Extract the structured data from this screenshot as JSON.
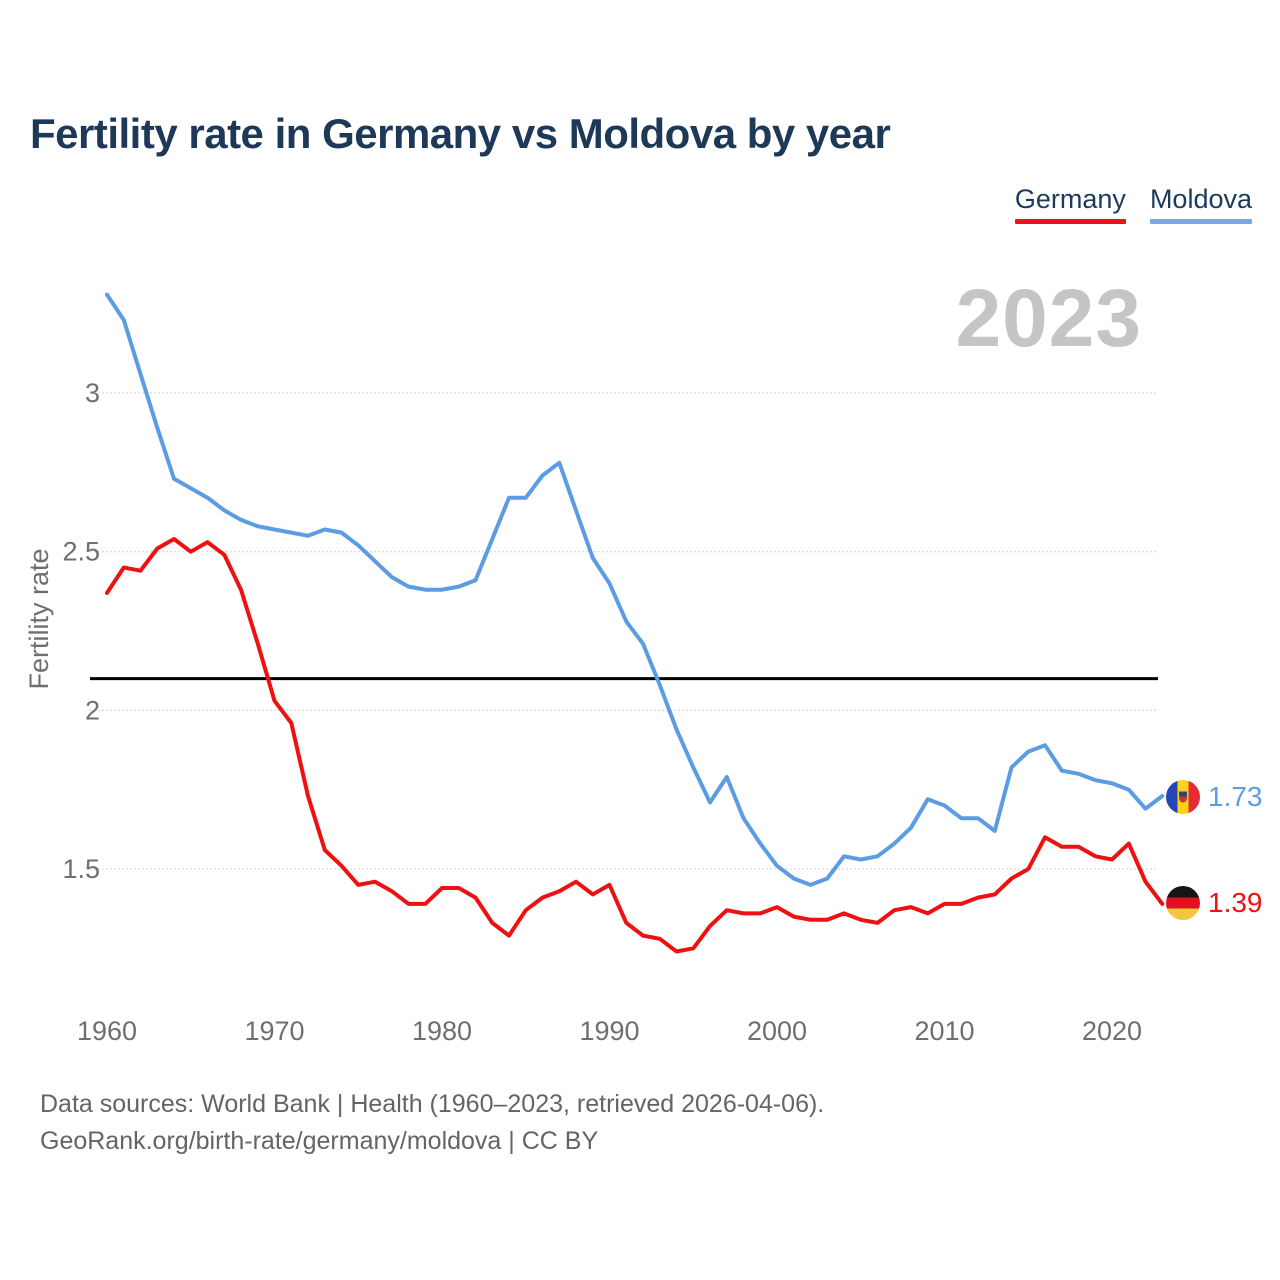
{
  "title": "Fertility rate in Germany vs Moldova by year",
  "legend": {
    "items": [
      {
        "label": "Germany",
        "color": "#f01112"
      },
      {
        "label": "Moldova",
        "color": "#6fadea"
      }
    ]
  },
  "watermark": "2023",
  "end_labels": [
    {
      "series": "Moldova",
      "value": "1.73",
      "flag": "moldova-flag",
      "color": "#5b9ce2"
    },
    {
      "series": "Germany",
      "value": "1.39",
      "flag": "germany-flag",
      "color": "#ee1111"
    }
  ],
  "footer": {
    "line1": "Data sources: World Bank | Health (1960–2023, retrieved 2026-04-06).",
    "line2": "GeoRank.org/birth-rate/germany/moldova | CC BY"
  },
  "chart_data": {
    "type": "line",
    "title": "Fertility rate in Germany vs Moldova by year",
    "ylabel": "Fertility rate",
    "x_start": 1960,
    "x_end": 2023,
    "x_ticks": [
      1960,
      1970,
      1980,
      1990,
      2000,
      2010,
      2020
    ],
    "y_ticks": [
      1.5,
      2,
      2.5,
      3
    ],
    "ylim": [
      1.15,
      3.45
    ],
    "grid": true,
    "legend_position": "top-right",
    "reference_line": {
      "value": 2.1,
      "color": "#000000"
    },
    "series": [
      {
        "name": "Germany",
        "color": "#ee1111",
        "values": [
          2.37,
          2.45,
          2.44,
          2.51,
          2.54,
          2.5,
          2.53,
          2.49,
          2.38,
          2.21,
          2.03,
          1.96,
          1.73,
          1.56,
          1.51,
          1.45,
          1.46,
          1.43,
          1.39,
          1.39,
          1.44,
          1.44,
          1.41,
          1.33,
          1.29,
          1.37,
          1.41,
          1.43,
          1.46,
          1.42,
          1.45,
          1.33,
          1.29,
          1.28,
          1.24,
          1.25,
          1.32,
          1.37,
          1.36,
          1.36,
          1.38,
          1.35,
          1.34,
          1.34,
          1.36,
          1.34,
          1.33,
          1.37,
          1.38,
          1.36,
          1.39,
          1.39,
          1.41,
          1.42,
          1.47,
          1.5,
          1.6,
          1.57,
          1.57,
          1.54,
          1.53,
          1.58,
          1.46,
          1.39
        ]
      },
      {
        "name": "Moldova",
        "color": "#5b9ce2",
        "values": [
          3.31,
          3.23,
          3.06,
          2.89,
          2.73,
          2.7,
          2.67,
          2.63,
          2.6,
          2.58,
          2.57,
          2.56,
          2.55,
          2.57,
          2.56,
          2.52,
          2.47,
          2.42,
          2.39,
          2.38,
          2.38,
          2.39,
          2.41,
          2.54,
          2.67,
          2.67,
          2.74,
          2.78,
          2.63,
          2.48,
          2.4,
          2.28,
          2.21,
          2.08,
          1.94,
          1.82,
          1.71,
          1.79,
          1.66,
          1.58,
          1.51,
          1.47,
          1.45,
          1.47,
          1.54,
          1.53,
          1.54,
          1.58,
          1.63,
          1.72,
          1.7,
          1.66,
          1.66,
          1.62,
          1.82,
          1.87,
          1.89,
          1.81,
          1.8,
          1.78,
          1.77,
          1.75,
          1.69,
          1.73
        ]
      }
    ]
  }
}
